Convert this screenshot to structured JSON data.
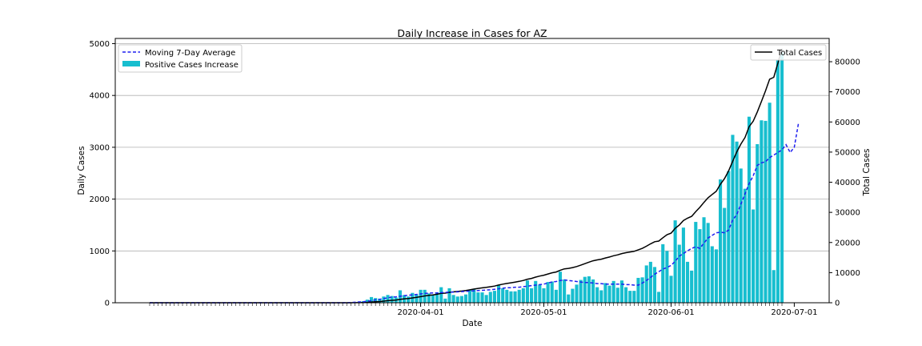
{
  "chart_data": {
    "type": "bar",
    "title": "Daily Increase in Cases for AZ",
    "xlabel": "Date",
    "ylabel": "Daily Cases",
    "y2label": "Total Cases",
    "ylim": [
      0,
      5100
    ],
    "y2lim": [
      0,
      87720
    ],
    "yticks": [
      0,
      1000,
      2000,
      3000,
      4000,
      5000
    ],
    "y2ticks": [
      0,
      10000,
      20000,
      30000,
      40000,
      50000,
      60000,
      70000,
      80000
    ],
    "xtick_labels": [
      "2020-04-01",
      "2020-05-01",
      "2020-06-01",
      "2020-07-01"
    ],
    "x_start": "2020-01-26",
    "x_end": "2020-07-01",
    "grid": "horizontal",
    "legend_left": [
      "Moving 7-Day Average",
      "Positive Cases Increase"
    ],
    "legend_right": [
      "Total Cases"
    ],
    "colors": {
      "bars": "#17becf",
      "average": "#1f1ff0",
      "total": "#000000",
      "grid": "#b0b0b0"
    },
    "daily_cases": [
      0,
      0,
      0,
      0,
      0,
      0,
      0,
      0,
      0,
      0,
      0,
      0,
      0,
      0,
      0,
      0,
      0,
      0,
      0,
      0,
      0,
      0,
      0,
      0,
      0,
      0,
      0,
      0,
      0,
      0,
      0,
      0,
      0,
      0,
      0,
      0,
      0,
      0,
      0,
      0,
      0,
      0,
      0,
      0,
      0,
      0,
      0,
      0,
      3,
      5,
      10,
      20,
      30,
      60,
      110,
      90,
      80,
      120,
      150,
      130,
      100,
      240,
      150,
      120,
      190,
      160,
      250,
      250,
      180,
      160,
      200,
      300,
      80,
      280,
      150,
      120,
      130,
      160,
      250,
      270,
      200,
      200,
      150,
      210,
      230,
      340,
      280,
      250,
      220,
      220,
      250,
      280,
      430,
      280,
      420,
      350,
      280,
      400,
      410,
      250,
      600,
      450,
      160,
      270,
      350,
      440,
      500,
      510,
      450,
      300,
      240,
      380,
      330,
      420,
      290,
      430,
      300,
      230,
      230,
      480,
      490,
      720,
      790,
      690,
      210,
      1130,
      1000,
      520,
      1590,
      1120,
      1450,
      790,
      620,
      1560,
      1420,
      1650,
      1540,
      1090,
      1030,
      2380,
      1830,
      2540,
      3240,
      3110,
      2590,
      2200,
      3590,
      1800,
      3060,
      3520,
      3510,
      3860,
      630,
      4680,
      4830
    ],
    "moving_avg": [
      0,
      0,
      0,
      0,
      0,
      0,
      0,
      0,
      0,
      0,
      0,
      0,
      0,
      0,
      0,
      0,
      0,
      0,
      0,
      0,
      0,
      0,
      0,
      0,
      0,
      0,
      0,
      0,
      0,
      0,
      0,
      0,
      0,
      0,
      0,
      0,
      0,
      0,
      0,
      0,
      0,
      0,
      0,
      0,
      0,
      0,
      0,
      0,
      0,
      5,
      10,
      15,
      20,
      30,
      40,
      55,
      65,
      80,
      95,
      110,
      115,
      125,
      135,
      145,
      150,
      160,
      170,
      180,
      185,
      190,
      190,
      195,
      200,
      205,
      205,
      210,
      215,
      220,
      225,
      230,
      235,
      240,
      245,
      250,
      260,
      270,
      280,
      290,
      290,
      300,
      300,
      310,
      320,
      330,
      340,
      350,
      360,
      380,
      400,
      410,
      430,
      440,
      430,
      420,
      410,
      400,
      390,
      390,
      380,
      370,
      370,
      360,
      360,
      360,
      360,
      360,
      350,
      350,
      340,
      340,
      380,
      430,
      490,
      550,
      600,
      650,
      680,
      720,
      800,
      900,
      950,
      1000,
      1050,
      1080,
      1050,
      1150,
      1250,
      1300,
      1350,
      1360,
      1350,
      1400,
      1600,
      1700,
      1900,
      2100,
      2300,
      2450,
      2650,
      2700,
      2720,
      2800,
      2850,
      2900,
      2950,
      3050,
      2900,
      3000,
      3450
    ],
    "total_cases": [
      0,
      0,
      0,
      0,
      0,
      0,
      0,
      0,
      0,
      0,
      0,
      0,
      0,
      0,
      0,
      0,
      0,
      0,
      0,
      0,
      0,
      0,
      0,
      0,
      0,
      0,
      0,
      0,
      0,
      0,
      0,
      0,
      0,
      0,
      0,
      0,
      0,
      0,
      0,
      0,
      0,
      0,
      0,
      0,
      0,
      0,
      0,
      0,
      3,
      8,
      18,
      38,
      68,
      128,
      238,
      328,
      408,
      528,
      678,
      808,
      908,
      1148,
      1298,
      1418,
      1608,
      1768,
      2018,
      2268,
      2448,
      2608,
      2808,
      3108,
      3188,
      3468,
      3618,
      3738,
      3868,
      4028,
      4278,
      4548,
      4748,
      4948,
      5098,
      5308,
      5538,
      5878,
      6158,
      6408,
      6628,
      6848,
      7098,
      7378,
      7808,
      8088,
      8508,
      8858,
      9138,
      9538,
      9948,
      10198,
      10798,
      11248,
      11408,
      11678,
      12028,
      12468,
      12968,
      13478,
      13928,
      14228,
      14468,
      14848,
      15178,
      15598,
      15888,
      16318,
      16618,
      16848,
      17078,
      17558,
      18048,
      18768,
      19558,
      20248,
      20458,
      21588,
      22588,
      23108,
      24698,
      25818,
      27268,
      28058,
      28678,
      30238,
      31658,
      33308,
      34848,
      35938,
      36968,
      39348,
      41178,
      43718,
      46958,
      50068,
      52658,
      54858,
      58448,
      60248,
      63308,
      66828,
      70338,
      74198,
      74828,
      79508,
      84338
    ]
  }
}
